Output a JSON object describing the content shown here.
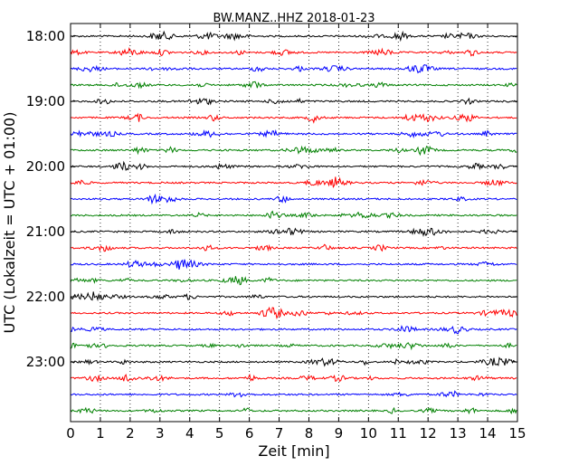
{
  "chart_data": {
    "type": "line",
    "title": "BW.MANZ..HHZ 2018-01-23",
    "xlabel": "Zeit  [min]",
    "ylabel": "UTC (Lokalzeit = UTC + 01:00)",
    "xlim": [
      0,
      15
    ],
    "x_ticks": [
      "0",
      "1",
      "2",
      "3",
      "4",
      "5",
      "6",
      "7",
      "8",
      "9",
      "10",
      "11",
      "12",
      "13",
      "14",
      "15"
    ],
    "y_tick_labels": [
      "18:00",
      "19:00",
      "20:00",
      "21:00",
      "22:00",
      "23:00"
    ],
    "grid": "vertical dotted",
    "trace_colors": [
      "#000000",
      "#ff0000",
      "#0000ff",
      "#008000"
    ],
    "trace_start_times": [
      "18:00",
      "18:15",
      "18:30",
      "18:45",
      "19:00",
      "19:15",
      "19:30",
      "19:45",
      "20:00",
      "20:15",
      "20:30",
      "20:45",
      "21:00",
      "21:15",
      "21:30",
      "21:45",
      "22:00",
      "22:15",
      "22:30",
      "22:45",
      "23:00",
      "23:15",
      "23:30",
      "23:45"
    ],
    "trace_minutes": 15
  }
}
